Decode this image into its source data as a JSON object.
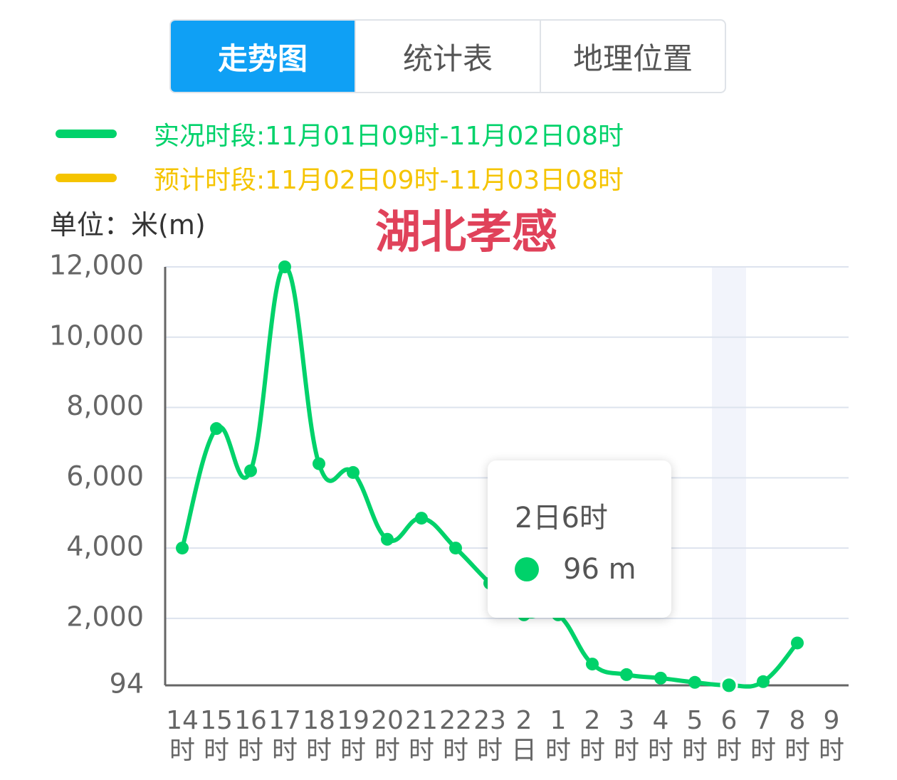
{
  "tabs": [
    "走势图",
    "统计表",
    "地理位置"
  ],
  "chart_data": {
    "type": "line",
    "title": "湖北孝感",
    "unit_label": "单位：米(m)",
    "categories": [
      "14时",
      "15时",
      "16时",
      "17时",
      "18时",
      "19时",
      "20时",
      "21时",
      "22时",
      "23时",
      "2日",
      "1时",
      "2时",
      "3时",
      "4时",
      "5时",
      "6时",
      "7时",
      "8时",
      "9时"
    ],
    "series": [
      {
        "name": "实况时段:11月01日09时-11月02日08时",
        "color": "#00d26a",
        "values": [
          4000,
          7400,
          6200,
          12000,
          6400,
          6150,
          4250,
          4850,
          4000,
          3000,
          2100,
          2100,
          700,
          400,
          300,
          180,
          96,
          200,
          1300,
          null
        ]
      },
      {
        "name": "预计时段:11月02日09时-11月03日08时",
        "color": "#f5c400",
        "values": [
          null,
          null,
          null,
          null,
          null,
          null,
          null,
          null,
          null,
          null,
          null,
          null,
          null,
          null,
          null,
          null,
          null,
          null,
          null,
          null
        ]
      }
    ],
    "ylim": [
      94,
      12000
    ],
    "yticks": [
      94,
      {
        "value": 2000,
        "label": "2,000"
      },
      {
        "value": 4000,
        "label": "4,000"
      },
      {
        "value": 6000,
        "label": "6,000"
      },
      {
        "value": 8000,
        "label": "8,000"
      },
      {
        "value": 10000,
        "label": "10,000"
      },
      {
        "value": 12000,
        "label": "12,000"
      }
    ],
    "grid": true,
    "tooltip": {
      "title": "2日6时",
      "text": "96 m"
    }
  }
}
